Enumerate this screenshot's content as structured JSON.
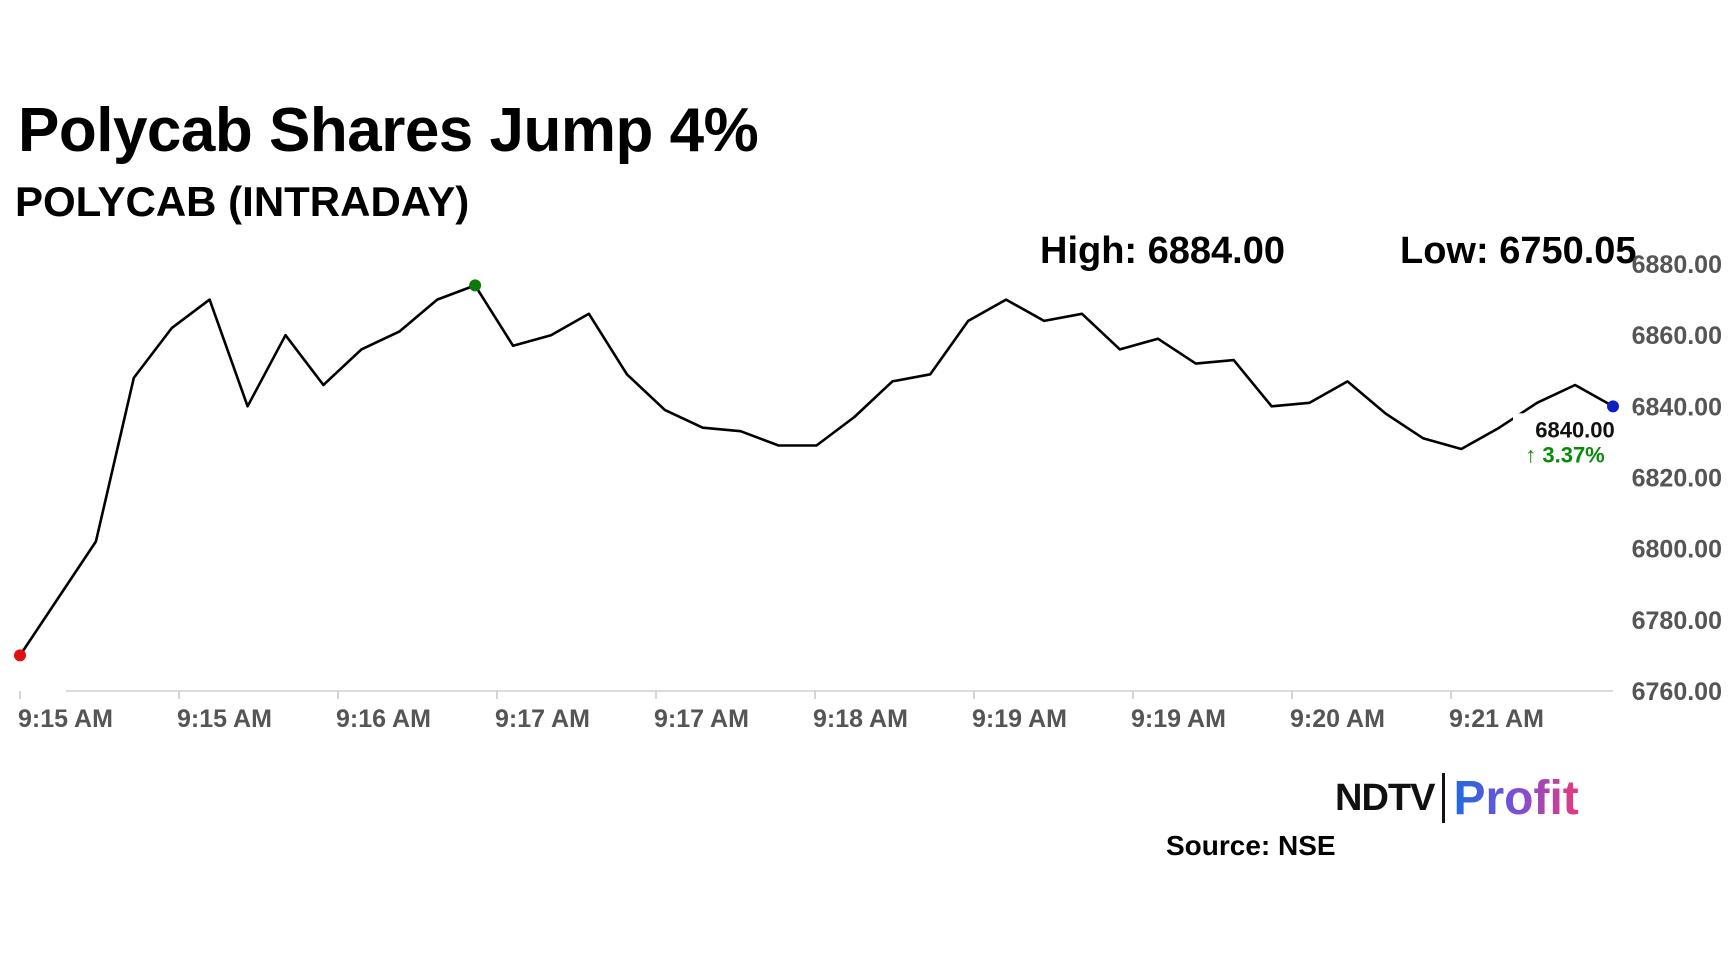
{
  "header": {
    "title": "Polycab Shares Jump 4%",
    "subtitle": "POLYCAB (INTRADAY)",
    "high_label": "High: 6884.00",
    "low_label": "Low: 6750.05"
  },
  "footer": {
    "logo_ndtv": "NDTV",
    "logo_profit": "Profit",
    "source": "Source: NSE"
  },
  "colors": {
    "line": "#000000",
    "start_marker": "#e01010",
    "high_marker": "#0a7a0a",
    "last_marker": "#1020c0",
    "change_text": "#0a8a0a",
    "axis_text": "#555555"
  },
  "chart_data": {
    "type": "line",
    "x_tick_labels": [
      "9:15 AM",
      "9:15 AM",
      "9:16 AM",
      "9:17 AM",
      "9:17 AM",
      "9:18 AM",
      "9:19 AM",
      "9:19 AM",
      "9:20 AM",
      "9:21 AM"
    ],
    "y_tick_labels": [
      "6880.00",
      "6860.00",
      "6840.00",
      "6820.00",
      "6800.00",
      "6780.00",
      "6760.00"
    ],
    "ylim": [
      6760,
      6880
    ],
    "x_count": 43,
    "series": [
      {
        "values": [
          6770,
          6786,
          6802,
          6848,
          6862,
          6870,
          6840,
          6860,
          6846,
          6856,
          6861,
          6870,
          6874,
          6857,
          6860,
          6866,
          6849,
          6839,
          6834,
          6833,
          6829,
          6829,
          6837,
          6847,
          6849,
          6864,
          6870,
          6864,
          6866,
          6856,
          6859,
          6852,
          6853,
          6840,
          6841,
          6847,
          6838,
          6831,
          6828,
          6834,
          6841,
          6846,
          6840
        ]
      }
    ],
    "last_value_label": "6840.00",
    "last_change_label": "↑ 3.37%",
    "grid": false,
    "markers": {
      "start": 0,
      "high": 12,
      "last": 42
    }
  }
}
